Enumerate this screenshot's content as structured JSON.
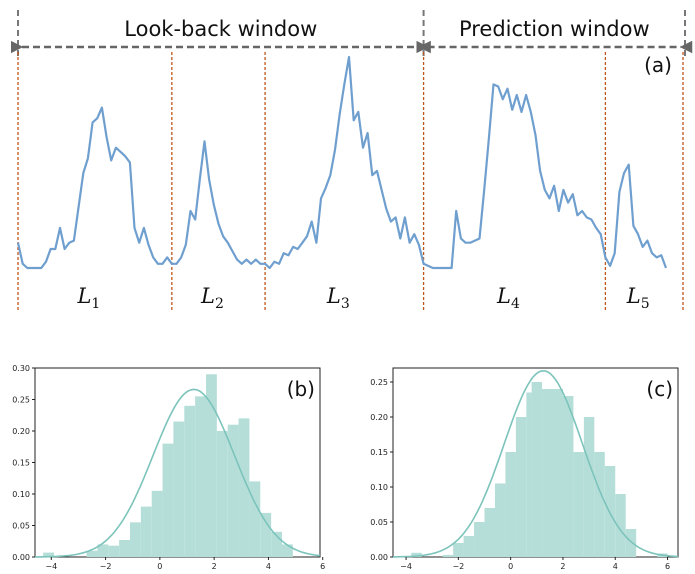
{
  "chart_data": [
    {
      "panel": "(a)",
      "type": "line",
      "windows": [
        {
          "label": "Look-back window",
          "x_from": 0,
          "x_to": 87
        },
        {
          "label": "Prediction window",
          "x_from": 87,
          "x_to": 145
        }
      ],
      "segments": [
        {
          "letter": "L",
          "sub": "1",
          "x_from": 0,
          "x_to": 33
        },
        {
          "letter": "L",
          "sub": "2",
          "x_from": 33,
          "x_to": 53
        },
        {
          "letter": "L",
          "sub": "3",
          "x_from": 53,
          "x_to": 87
        },
        {
          "letter": "L",
          "sub": "4",
          "x_from": 87,
          "x_to": 126
        },
        {
          "letter": "L",
          "sub": "5",
          "x_from": 126,
          "x_to": 145
        }
      ],
      "series": [
        {
          "color": "#6f9fcf",
          "values": [
            0.12,
            0.02,
            0.0,
            0.0,
            0.0,
            0.0,
            0.03,
            0.09,
            0.09,
            0.19,
            0.09,
            0.12,
            0.13,
            0.29,
            0.45,
            0.52,
            0.69,
            0.71,
            0.76,
            0.62,
            0.51,
            0.57,
            0.55,
            0.53,
            0.5,
            0.19,
            0.12,
            0.19,
            0.11,
            0.05,
            0.02,
            0.02,
            0.05,
            0.02,
            0.02,
            0.05,
            0.11,
            0.27,
            0.23,
            0.42,
            0.6,
            0.42,
            0.3,
            0.21,
            0.15,
            0.12,
            0.08,
            0.04,
            0.02,
            0.04,
            0.02,
            0.04,
            0.02,
            0.02,
            0.0,
            0.03,
            0.02,
            0.07,
            0.06,
            0.1,
            0.09,
            0.12,
            0.15,
            0.22,
            0.12,
            0.33,
            0.38,
            0.44,
            0.56,
            0.73,
            0.87,
            1.0,
            0.7,
            0.74,
            0.57,
            0.64,
            0.44,
            0.46,
            0.37,
            0.28,
            0.22,
            0.24,
            0.14,
            0.24,
            0.12,
            0.16,
            0.11,
            0.02,
            0.01,
            0.0,
            0.0,
            0.0,
            0.0,
            0.0,
            0.27,
            0.14,
            0.12,
            0.12,
            0.13,
            0.14,
            0.37,
            0.61,
            0.87,
            0.86,
            0.8,
            0.85,
            0.75,
            0.82,
            0.74,
            0.82,
            0.74,
            0.63,
            0.46,
            0.37,
            0.33,
            0.39,
            0.27,
            0.37,
            0.31,
            0.35,
            0.25,
            0.27,
            0.24,
            0.23,
            0.19,
            0.16,
            0.05,
            0.01,
            0.07,
            0.36,
            0.45,
            0.49,
            0.2,
            0.16,
            0.1,
            0.13,
            0.07,
            0.05,
            0.06,
            0.0
          ]
        }
      ]
    },
    {
      "panel": "(b)",
      "type": "histogram",
      "xlim": [
        -4.6,
        5.9
      ],
      "ylim": [
        0,
        0.3
      ],
      "xticks": [
        "−4",
        "−2",
        "0",
        "2",
        "4",
        "6"
      ],
      "yticks": [
        "0.00",
        "0.05",
        "0.10",
        "0.15",
        "0.20",
        "0.25",
        "0.30"
      ],
      "bin_edges": [
        -4.3,
        -3.9,
        -3.5,
        -3.1,
        -2.7,
        -2.3,
        -1.9,
        -1.5,
        -1.1,
        -0.7,
        -0.3,
        0.1,
        0.5,
        0.9,
        1.3,
        1.7,
        2.1,
        2.5,
        2.9,
        3.3,
        3.7,
        4.1,
        4.5,
        4.9,
        5.3
      ],
      "counts": [
        0.007,
        0.0,
        0.0,
        0.0,
        0.01,
        0.02,
        0.018,
        0.027,
        0.055,
        0.08,
        0.105,
        0.18,
        0.215,
        0.24,
        0.255,
        0.29,
        0.2,
        0.21,
        0.22,
        0.12,
        0.07,
        0.04,
        0.02,
        0.0
      ],
      "curve": {
        "type": "normal",
        "mean": 1.25,
        "std": 1.5
      }
    },
    {
      "panel": "(c)",
      "type": "histogram",
      "xlim": [
        -4.5,
        6.4
      ],
      "ylim": [
        0,
        0.27
      ],
      "xticks": [
        "−4",
        "−2",
        "0",
        "2",
        "4",
        "6"
      ],
      "yticks": [
        "0.00",
        "0.05",
        "0.10",
        "0.15",
        "0.20",
        "0.25"
      ],
      "bin_edges": [
        -3.8,
        -3.4,
        -3.0,
        -2.6,
        -2.2,
        -1.8,
        -1.4,
        -1.0,
        -0.6,
        -0.2,
        0.2,
        0.6,
        0.8,
        1.2,
        1.6,
        2.0,
        2.4,
        2.8,
        3.2,
        3.6,
        4.0,
        4.4,
        4.8,
        5.6,
        6.0
      ],
      "counts": [
        0.006,
        0.0,
        0.0,
        0.003,
        0.02,
        0.03,
        0.05,
        0.07,
        0.105,
        0.15,
        0.2,
        0.235,
        0.25,
        0.24,
        0.24,
        0.23,
        0.15,
        0.2,
        0.15,
        0.13,
        0.09,
        0.04,
        0.0,
        0.005
      ],
      "curve": {
        "type": "normal",
        "mean": 1.25,
        "std": 1.5
      }
    }
  ]
}
